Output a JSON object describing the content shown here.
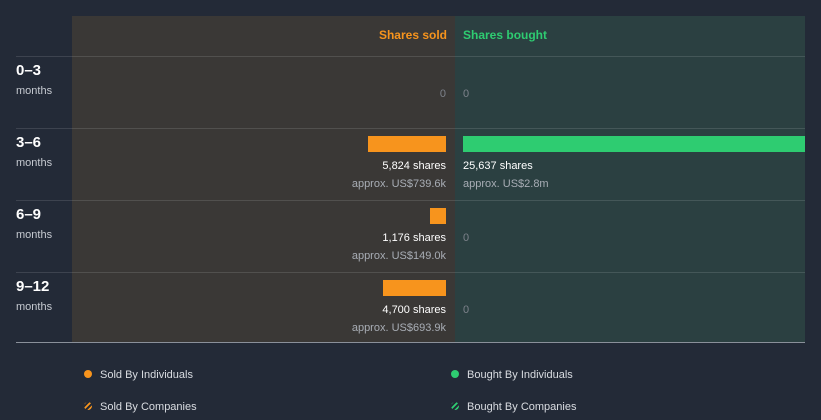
{
  "header": {
    "sold_label": "Shares sold",
    "bought_label": "Shares bought"
  },
  "colors": {
    "sold": "#f7941d",
    "bought": "#2ecc71"
  },
  "chart_data": {
    "type": "bar",
    "title": "",
    "categories": [
      "0–3 months",
      "3–6 months",
      "6–9 months",
      "9–12 months"
    ],
    "series": [
      {
        "name": "Shares sold",
        "values": [
          0,
          5824,
          1176,
          4700
        ]
      },
      {
        "name": "Shares bought",
        "values": [
          0,
          25637,
          0,
          0
        ]
      }
    ],
    "xlim": [
      0,
      25637
    ]
  },
  "periods": [
    {
      "label": "0–3",
      "unit": "months",
      "sold": {
        "value": 0,
        "shares_text": "",
        "approx_text": "",
        "zero_text": "0"
      },
      "bought": {
        "value": 0,
        "shares_text": "",
        "approx_text": "",
        "zero_text": "0"
      }
    },
    {
      "label": "3–6",
      "unit": "months",
      "sold": {
        "value": 5824,
        "shares_text": "5,824 shares",
        "approx_text": "approx. US$739.6k",
        "zero_text": ""
      },
      "bought": {
        "value": 25637,
        "shares_text": "25,637 shares",
        "approx_text": "approx. US$2.8m",
        "zero_text": ""
      }
    },
    {
      "label": "6–9",
      "unit": "months",
      "sold": {
        "value": 1176,
        "shares_text": "1,176 shares",
        "approx_text": "approx. US$149.0k",
        "zero_text": ""
      },
      "bought": {
        "value": 0,
        "shares_text": "",
        "approx_text": "",
        "zero_text": "0"
      }
    },
    {
      "label": "9–12",
      "unit": "months",
      "sold": {
        "value": 4700,
        "shares_text": "4,700 shares",
        "approx_text": "approx. US$693.9k",
        "zero_text": ""
      },
      "bought": {
        "value": 0,
        "shares_text": "",
        "approx_text": "",
        "zero_text": "0"
      }
    }
  ],
  "legend": {
    "sold_individuals": "Sold By Individuals",
    "bought_individuals": "Bought By Individuals",
    "sold_companies": "Sold By Companies",
    "bought_companies": "Bought By Companies"
  }
}
